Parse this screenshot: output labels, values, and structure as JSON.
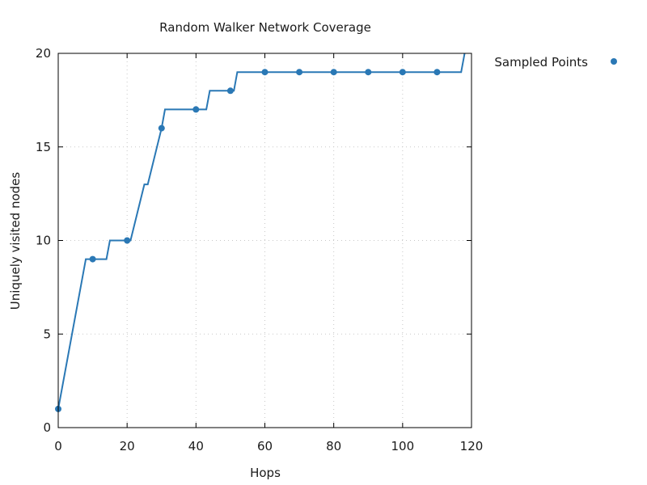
{
  "chart_data": {
    "type": "line",
    "title": "Random Walker Network Coverage",
    "xlabel": "Hops",
    "ylabel": "Uniquely visited nodes",
    "xlim": [
      0,
      120
    ],
    "ylim": [
      0,
      20
    ],
    "xticks": [
      0,
      20,
      40,
      60,
      80,
      100,
      120
    ],
    "yticks": [
      0,
      5,
      10,
      15,
      20
    ],
    "grid": true,
    "legend_position": "top-right-outside",
    "line_color": "#2a78b5",
    "series": [
      {
        "type": "line",
        "x": [
          0,
          8,
          14,
          15,
          21,
          25,
          26,
          30,
          31,
          43,
          44,
          51,
          52,
          117,
          118
        ],
        "y": [
          1,
          9,
          9,
          10,
          10,
          13,
          13,
          16,
          17,
          17,
          18,
          18,
          19,
          19,
          20
        ]
      },
      {
        "name": "Sampled Points",
        "type": "scatter",
        "x": [
          0,
          10,
          20,
          30,
          40,
          50,
          60,
          70,
          80,
          90,
          100,
          110
        ],
        "y": [
          1,
          9,
          10,
          16,
          17,
          18,
          19,
          19,
          19,
          19,
          19,
          19
        ]
      }
    ]
  }
}
